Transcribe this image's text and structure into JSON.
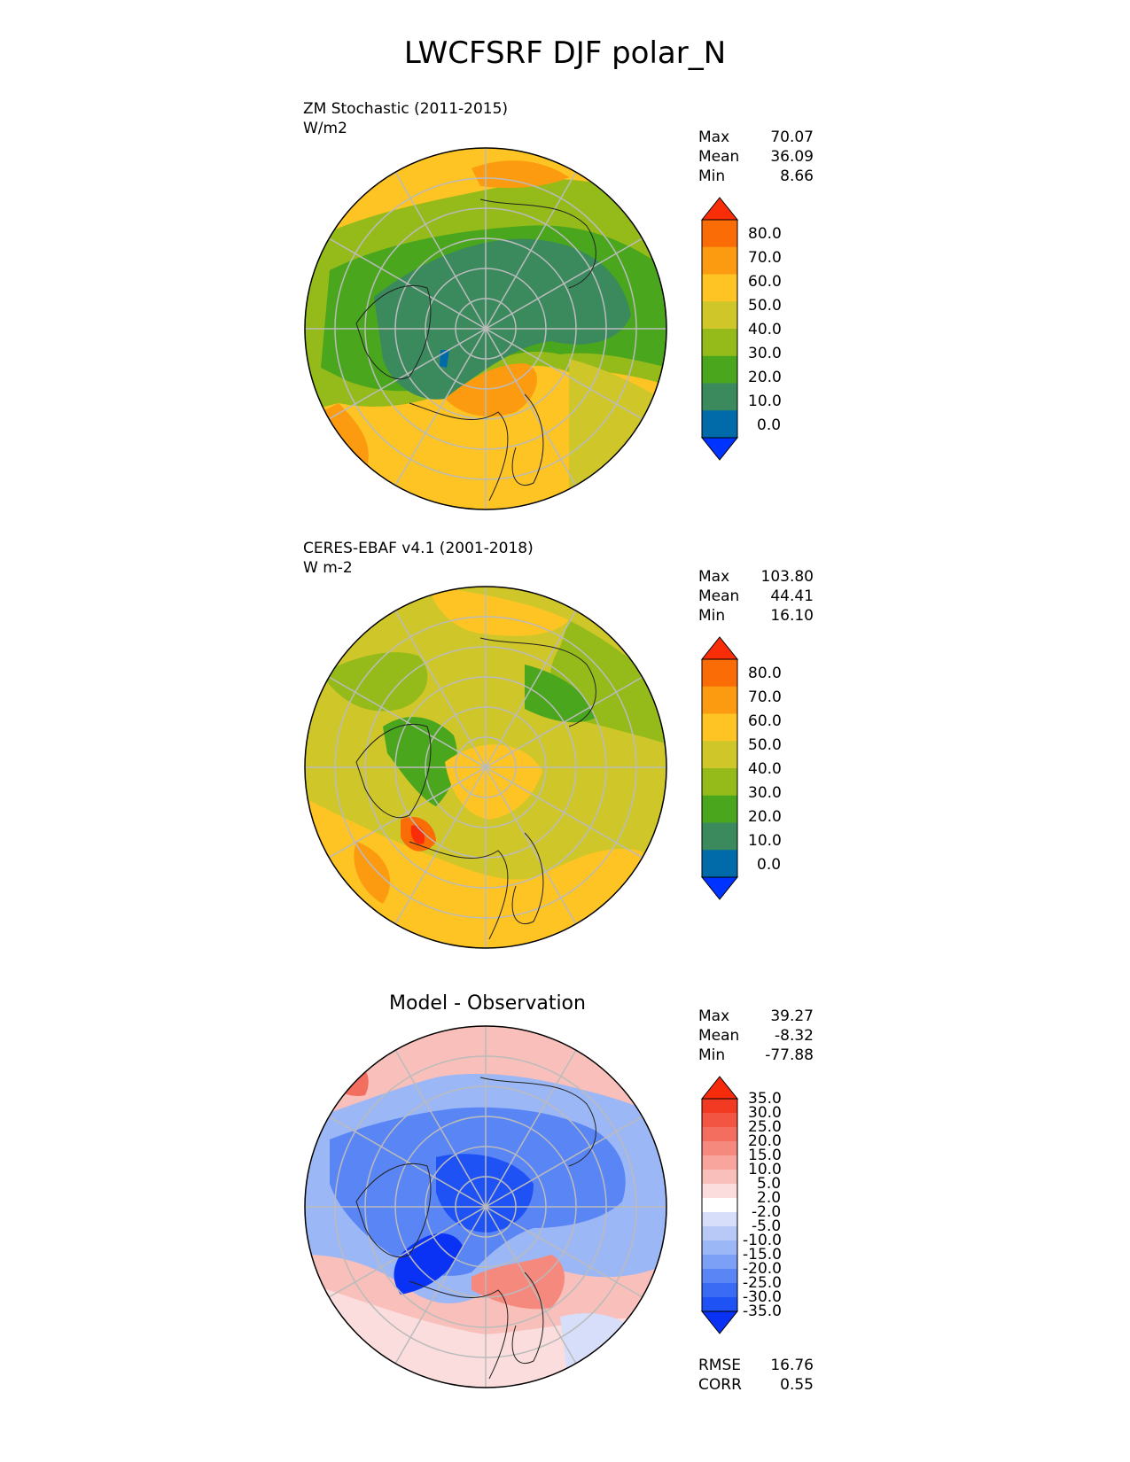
{
  "title": "LWCFSRF DJF polar_N",
  "panels": [
    {
      "name": "model",
      "label_lines": [
        "ZM Stochastic (2011-2015)",
        "W/m2"
      ],
      "center_title": "",
      "stats": [
        {
          "label": "Max",
          "value": "70.07"
        },
        {
          "label": "Mean",
          "value": "36.09"
        },
        {
          "label": "Min",
          "value": "8.66"
        }
      ],
      "footer_stats": [],
      "colorbar": {
        "colors": [
          "#0033ff",
          "#006ba8",
          "#3a8a5e",
          "#4aa61d",
          "#95bb1a",
          "#cfc72a",
          "#fdc424",
          "#fc9b0f",
          "#f96c06",
          "#f92d08"
        ],
        "ticks": [
          "80.0",
          "70.0",
          "60.0",
          "50.0",
          "40.0",
          "30.0",
          "20.0",
          "10.0",
          "0.0"
        ]
      }
    },
    {
      "name": "observation",
      "label_lines": [
        "CERES-EBAF v4.1 (2001-2018)",
        "W m-2"
      ],
      "center_title": "",
      "stats": [
        {
          "label": "Max",
          "value": "103.80"
        },
        {
          "label": "Mean",
          "value": "44.41"
        },
        {
          "label": "Min",
          "value": "16.10"
        }
      ],
      "footer_stats": [],
      "colorbar": {
        "colors": [
          "#0033ff",
          "#006ba8",
          "#3a8a5e",
          "#4aa61d",
          "#95bb1a",
          "#cfc72a",
          "#fdc424",
          "#fc9b0f",
          "#f96c06",
          "#f92d08"
        ],
        "ticks": [
          "80.0",
          "70.0",
          "60.0",
          "50.0",
          "40.0",
          "30.0",
          "20.0",
          "10.0",
          "0.0"
        ]
      }
    },
    {
      "name": "difference",
      "label_lines": [],
      "center_title": "Model - Observation",
      "stats": [
        {
          "label": "Max",
          "value": "39.27"
        },
        {
          "label": "Mean",
          "value": "-8.32"
        },
        {
          "label": "Min",
          "value": "-77.88"
        }
      ],
      "footer_stats": [
        {
          "label": "RMSE",
          "value": "16.76"
        },
        {
          "label": "CORR",
          "value": "0.55"
        }
      ],
      "colorbar": {
        "colors": [
          "#0a32f5",
          "#1f52f5",
          "#3a6bf5",
          "#5a86f5",
          "#7ba0f5",
          "#9cb7f5",
          "#b8c9f7",
          "#d6defa",
          "#ffffff",
          "#fbdddd",
          "#f9c0bb",
          "#f7a59d",
          "#f5897e",
          "#f36e5f",
          "#f25541",
          "#f23a22",
          "#f52b0c"
        ],
        "ticks": [
          "35.0",
          "30.0",
          "25.0",
          "20.0",
          "15.0",
          "10.0",
          "5.0",
          "2.0",
          "-2.0",
          "-5.0",
          "-10.0",
          "-15.0",
          "-20.0",
          "-25.0",
          "-30.0",
          "-35.0"
        ]
      }
    }
  ]
}
